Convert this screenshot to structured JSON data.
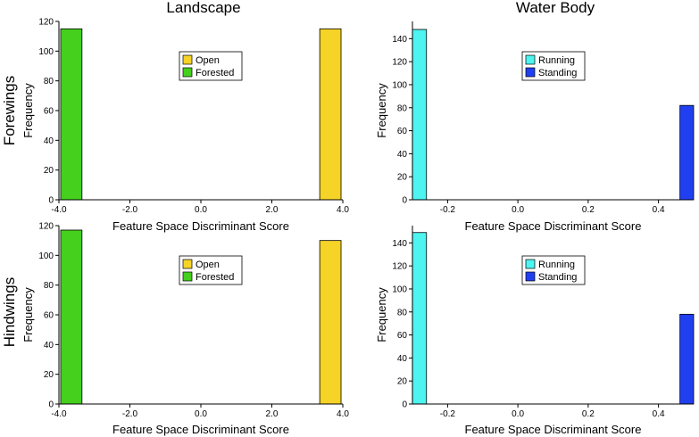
{
  "figure": {
    "column_titles": [
      "Landscape",
      "Water Body"
    ],
    "row_titles": [
      "Forewings",
      "Hindwings"
    ]
  },
  "chart_data": [
    {
      "id": "forewings-landscape",
      "type": "bar",
      "xlabel": "Feature Space Discriminant Score",
      "ylabel": "Frequency",
      "xlim": [
        -4.0,
        4.0
      ],
      "ylim": [
        0,
        120
      ],
      "xticks": [
        -4.0,
        -2.0,
        0.0,
        2.0,
        4.0
      ],
      "xtick_labels": [
        "-4.0",
        "-2.0",
        "0.0",
        "2.0",
        "4.0"
      ],
      "yticks": [
        0,
        20,
        40,
        60,
        80,
        100,
        120
      ],
      "ytick_labels": [
        "0",
        "20",
        "40",
        "60",
        "80",
        "100",
        "120"
      ],
      "legend": "top-center",
      "grid": false,
      "series": [
        {
          "name": "Open",
          "color": "#f5d327",
          "bins": [
            {
              "x0": 3.35,
              "x1": 3.95,
              "value": 115
            }
          ]
        },
        {
          "name": "Forested",
          "color": "#44d01c",
          "bins": [
            {
              "x0": -3.95,
              "x1": -3.35,
              "value": 115
            }
          ]
        }
      ]
    },
    {
      "id": "forewings-water-body",
      "type": "bar",
      "xlabel": "Feature Space Discriminant Score",
      "ylabel": "Frequency",
      "xlim": [
        -0.3,
        0.5
      ],
      "ylim": [
        0,
        155
      ],
      "xticks": [
        -0.2,
        0.0,
        0.2,
        0.4
      ],
      "xtick_labels": [
        "-0.2",
        "0.0",
        "0.2",
        "0.4"
      ],
      "yticks": [
        0,
        20,
        40,
        60,
        80,
        100,
        120,
        140
      ],
      "ytick_labels": [
        "0",
        "20",
        "40",
        "60",
        "80",
        "100",
        "120",
        "140"
      ],
      "legend": "top-center",
      "grid": false,
      "series": [
        {
          "name": "Running",
          "color": "#4df4f0",
          "bins": [
            {
              "x0": -0.3,
              "x1": -0.26,
              "value": 148
            }
          ]
        },
        {
          "name": "Standing",
          "color": "#1f3ff0",
          "bins": [
            {
              "x0": 0.461,
              "x1": 0.5,
              "value": 82
            }
          ]
        }
      ]
    },
    {
      "id": "hindwings-landscape",
      "type": "bar",
      "xlabel": "Feature Space Discriminant Score",
      "ylabel": "Frequency",
      "xlim": [
        -4.0,
        4.0
      ],
      "ylim": [
        0,
        120
      ],
      "xticks": [
        -4.0,
        -2.0,
        0.0,
        2.0,
        4.0
      ],
      "xtick_labels": [
        "-4.0",
        "-2.0",
        "0.0",
        "2.0",
        "4.0"
      ],
      "yticks": [
        0,
        20,
        40,
        60,
        80,
        100,
        120
      ],
      "ytick_labels": [
        "0",
        "20",
        "40",
        "60",
        "80",
        "100",
        "120"
      ],
      "legend": "top-center",
      "grid": false,
      "series": [
        {
          "name": "Open",
          "color": "#f5d327",
          "bins": [
            {
              "x0": 3.35,
              "x1": 3.95,
              "value": 110
            }
          ]
        },
        {
          "name": "Forested",
          "color": "#44d01c",
          "bins": [
            {
              "x0": -3.95,
              "x1": -3.35,
              "value": 117
            }
          ]
        }
      ]
    },
    {
      "id": "hindwings-water-body",
      "type": "bar",
      "xlabel": "Feature Space Discriminant Score",
      "ylabel": "Frequency",
      "xlim": [
        -0.3,
        0.5
      ],
      "ylim": [
        0,
        155
      ],
      "xticks": [
        -0.2,
        0.0,
        0.2,
        0.4
      ],
      "xtick_labels": [
        "-0.2",
        "0.0",
        "0.2",
        "0.4"
      ],
      "yticks": [
        0,
        20,
        40,
        60,
        80,
        100,
        120,
        140
      ],
      "ytick_labels": [
        "0",
        "20",
        "40",
        "60",
        "80",
        "100",
        "120",
        "140"
      ],
      "legend": "top-center",
      "grid": false,
      "series": [
        {
          "name": "Running",
          "color": "#4df4f0",
          "bins": [
            {
              "x0": -0.3,
              "x1": -0.26,
              "value": 149
            }
          ]
        },
        {
          "name": "Standing",
          "color": "#1f3ff0",
          "bins": [
            {
              "x0": 0.461,
              "x1": 0.5,
              "value": 78
            }
          ]
        }
      ]
    }
  ]
}
